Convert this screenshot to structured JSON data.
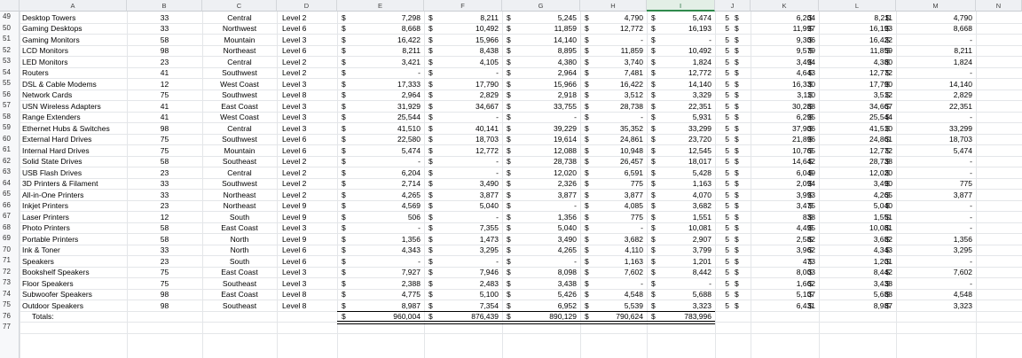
{
  "columns": [
    "A",
    "B",
    "C",
    "D",
    "E",
    "F",
    "G",
    "H",
    "I",
    "J",
    "K",
    "L",
    "M",
    "N"
  ],
  "selected_column": "I",
  "rows": [
    {
      "n": "49",
      "item": "Desktop Towers",
      "qty": "33",
      "region": "Central",
      "level": "Level 2",
      "e": "7,298",
      "f": "8,211",
      "g": "5,245",
      "h": "4,790",
      "i": "5,474",
      "j": "5",
      "k": "6,204",
      "l": "8,211",
      "m": "4,790"
    },
    {
      "n": "50",
      "item": "Gaming Desktops",
      "qty": "33",
      "region": "Northwest",
      "level": "Level 6",
      "e": "8,668",
      "f": "10,492",
      "g": "11,859",
      "h": "12,772",
      "i": "16,193",
      "j": "5",
      "k": "11,997",
      "l": "16,193",
      "m": "8,668"
    },
    {
      "n": "51",
      "item": "Gaming Monitors",
      "qty": "58",
      "region": "Mountain",
      "level": "Level 3",
      "e": "16,422",
      "f": "15,966",
      "g": "14,140",
      "h": "-",
      "i": "-",
      "j": "5",
      "k": "9,306",
      "l": "16,422",
      "m": "-"
    },
    {
      "n": "52",
      "item": "LCD Monitors",
      "qty": "98",
      "region": "Northeast",
      "level": "Level 6",
      "e": "8,211",
      "f": "8,438",
      "g": "8,895",
      "h": "11,859",
      "i": "10,492",
      "j": "5",
      "k": "9,579",
      "l": "11,859",
      "m": "8,211"
    },
    {
      "n": "53",
      "item": "LED Monitors",
      "qty": "23",
      "region": "Central",
      "level": "Level 2",
      "e": "3,421",
      "f": "4,105",
      "g": "4,380",
      "h": "3,740",
      "i": "1,824",
      "j": "5",
      "k": "3,494",
      "l": "4,380",
      "m": "1,824"
    },
    {
      "n": "54",
      "item": "Routers",
      "qty": "41",
      "region": "Southwest",
      "level": "Level 2",
      "e": "-",
      "f": "-",
      "g": "2,964",
      "h": "7,481",
      "i": "12,772",
      "j": "5",
      "k": "4,643",
      "l": "12,772",
      "m": "-"
    },
    {
      "n": "55",
      "item": "DSL & Cable Modems",
      "qty": "12",
      "region": "West Coast",
      "level": "Level 3",
      "e": "17,333",
      "f": "17,790",
      "g": "15,966",
      "h": "16,422",
      "i": "14,140",
      "j": "5",
      "k": "16,330",
      "l": "17,790",
      "m": "14,140"
    },
    {
      "n": "56",
      "item": "Network Cards",
      "qty": "75",
      "region": "Southwest",
      "level": "Level 8",
      "e": "2,964",
      "f": "2,829",
      "g": "2,918",
      "h": "3,512",
      "i": "3,329",
      "j": "5",
      "k": "3,110",
      "l": "3,512",
      "m": "2,829"
    },
    {
      "n": "57",
      "item": "USN Wireless Adapters",
      "qty": "41",
      "region": "East Coast",
      "level": "Level 3",
      "e": "31,929",
      "f": "34,667",
      "g": "33,755",
      "h": "28,738",
      "i": "22,351",
      "j": "5",
      "k": "30,288",
      "l": "34,667",
      "m": "22,351"
    },
    {
      "n": "58",
      "item": "Range Extenders",
      "qty": "41",
      "region": "West Coast",
      "level": "Level 3",
      "e": "25,544",
      "f": "-",
      "g": "-",
      "h": "-",
      "i": "5,931",
      "j": "5",
      "k": "6,295",
      "l": "25,544",
      "m": "-"
    },
    {
      "n": "59",
      "item": "Ethernet Hubs & Switches",
      "qty": "98",
      "region": "Central",
      "level": "Level 3",
      "e": "41,510",
      "f": "40,141",
      "g": "39,229",
      "h": "35,352",
      "i": "33,299",
      "j": "5",
      "k": "37,906",
      "l": "41,510",
      "m": "33,299"
    },
    {
      "n": "60",
      "item": "External Hard Drives",
      "qty": "75",
      "region": "Southwest",
      "level": "Level 6",
      "e": "22,580",
      "f": "18,703",
      "g": "19,614",
      "h": "24,861",
      "i": "23,720",
      "j": "5",
      "k": "21,896",
      "l": "24,861",
      "m": "18,703"
    },
    {
      "n": "61",
      "item": "Internal Hard Drives",
      "qty": "75",
      "region": "Mountain",
      "level": "Level 6",
      "e": "5,474",
      "f": "12,772",
      "g": "12,088",
      "h": "10,948",
      "i": "12,545",
      "j": "5",
      "k": "10,765",
      "l": "12,772",
      "m": "5,474"
    },
    {
      "n": "62",
      "item": "Solid State Drives",
      "qty": "58",
      "region": "Southeast",
      "level": "Level 2",
      "e": "-",
      "f": "-",
      "g": "28,738",
      "h": "26,457",
      "i": "18,017",
      "j": "5",
      "k": "14,642",
      "l": "28,738",
      "m": "-"
    },
    {
      "n": "63",
      "item": "USB Flash Drives",
      "qty": "23",
      "region": "Central",
      "level": "Level 2",
      "e": "6,204",
      "f": "-",
      "g": "12,020",
      "h": "6,591",
      "i": "5,428",
      "j": "5",
      "k": "6,049",
      "l": "12,020",
      "m": "-"
    },
    {
      "n": "64",
      "item": "3D Printers & Filament",
      "qty": "33",
      "region": "Southwest",
      "level": "Level 2",
      "e": "2,714",
      "f": "3,490",
      "g": "2,326",
      "h": "775",
      "i": "1,163",
      "j": "5",
      "k": "2,094",
      "l": "3,490",
      "m": "775"
    },
    {
      "n": "65",
      "item": "All-in-One Printers",
      "qty": "33",
      "region": "Northeast",
      "level": "Level 2",
      "e": "4,265",
      "f": "3,877",
      "g": "3,877",
      "h": "3,877",
      "i": "4,070",
      "j": "5",
      "k": "3,993",
      "l": "4,265",
      "m": "3,877"
    },
    {
      "n": "66",
      "item": "Inkjet Printers",
      "qty": "23",
      "region": "Northeast",
      "level": "Level 9",
      "e": "4,569",
      "f": "5,040",
      "g": "-",
      "h": "4,085",
      "i": "3,682",
      "j": "5",
      "k": "3,475",
      "l": "5,040",
      "m": "-"
    },
    {
      "n": "67",
      "item": "Laser Printers",
      "qty": "12",
      "region": "South",
      "level": "Level 9",
      "e": "506",
      "f": "-",
      "g": "1,356",
      "h": "775",
      "i": "1,551",
      "j": "5",
      "k": "838",
      "l": "1,551",
      "m": "-"
    },
    {
      "n": "68",
      "item": "Photo Printers",
      "qty": "58",
      "region": "East Coast",
      "level": "Level 3",
      "e": "-",
      "f": "7,355",
      "g": "5,040",
      "h": "-",
      "i": "10,081",
      "j": "5",
      "k": "4,495",
      "l": "10,081",
      "m": "-"
    },
    {
      "n": "69",
      "item": "Portable Printers",
      "qty": "58",
      "region": "North",
      "level": "Level 9",
      "e": "1,356",
      "f": "1,473",
      "g": "3,490",
      "h": "3,682",
      "i": "2,907",
      "j": "5",
      "k": "2,582",
      "l": "3,682",
      "m": "1,356"
    },
    {
      "n": "70",
      "item": "Ink & Toner",
      "qty": "33",
      "region": "North",
      "level": "Level 6",
      "e": "4,343",
      "f": "3,295",
      "g": "4,265",
      "h": "4,110",
      "i": "3,799",
      "j": "5",
      "k": "3,962",
      "l": "4,343",
      "m": "3,295"
    },
    {
      "n": "71",
      "item": "Speakers",
      "qty": "23",
      "region": "South",
      "level": "Level 6",
      "e": "-",
      "f": "-",
      "g": "-",
      "h": "1,163",
      "i": "1,201",
      "j": "5",
      "k": "473",
      "l": "1,201",
      "m": "-"
    },
    {
      "n": "72",
      "item": "Bookshelf Speakers",
      "qty": "75",
      "region": "East Coast",
      "level": "Level 3",
      "e": "7,927",
      "f": "7,946",
      "g": "8,098",
      "h": "7,602",
      "i": "8,442",
      "j": "5",
      "k": "8,003",
      "l": "8,442",
      "m": "7,602"
    },
    {
      "n": "73",
      "item": "Floor Speakers",
      "qty": "75",
      "region": "Southeast",
      "level": "Level 3",
      "e": "2,388",
      "f": "2,483",
      "g": "3,438",
      "h": "-",
      "i": "-",
      "j": "5",
      "k": "1,662",
      "l": "3,438",
      "m": "-"
    },
    {
      "n": "74",
      "item": "Subwoofer Speakers",
      "qty": "98",
      "region": "East Coast",
      "level": "Level 8",
      "e": "4,775",
      "f": "5,100",
      "g": "5,426",
      "h": "4,548",
      "i": "5,688",
      "j": "5",
      "k": "5,107",
      "l": "5,688",
      "m": "4,548"
    },
    {
      "n": "75",
      "item": "Outdoor Speakers",
      "qty": "98",
      "region": "Southeast",
      "level": "Level 8",
      "e": "8,987",
      "f": "7,354",
      "g": "6,952",
      "h": "5,539",
      "i": "3,323",
      "j": "5",
      "k": "6,431",
      "l": "8,987",
      "m": "3,323"
    }
  ],
  "totals": {
    "n": "76",
    "label": "Totals:",
    "e": "960,004",
    "f": "876,439",
    "g": "890,129",
    "h": "790,624",
    "i": "783,996"
  },
  "last_row": {
    "n": "77"
  },
  "currency": "$"
}
